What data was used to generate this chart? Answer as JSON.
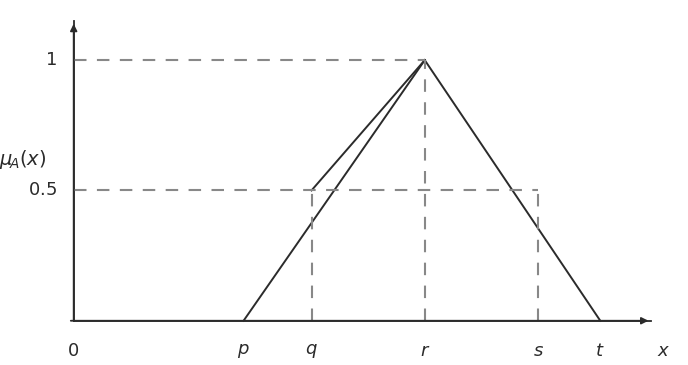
{
  "background_color": "#ffffff",
  "axis_color": "#000000",
  "line_color": "#2b2b2b",
  "dashed_color": "#888888",
  "points": {
    "p": 0.3,
    "q": 0.42,
    "r": 0.62,
    "s": 0.82,
    "t": 0.93
  },
  "xlim_plot": [
    -0.05,
    1.08
  ],
  "ylim_plot": [
    -0.13,
    1.22
  ],
  "x_axis_start": 0.0,
  "x_axis_end": 1.02,
  "y_axis_start": 0.0,
  "y_axis_end": 1.15,
  "figsize": [
    6.88,
    3.65
  ],
  "dpi": 100,
  "font_size": 13,
  "label_font_size": 14
}
